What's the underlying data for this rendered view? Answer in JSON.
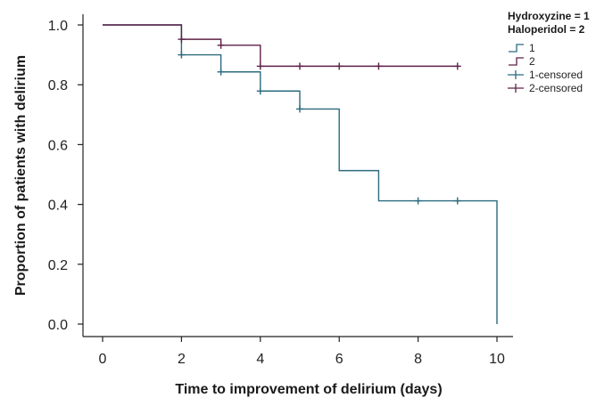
{
  "chart_data": {
    "type": "line",
    "xlabel": "Time to improvement of delirium (days)",
    "ylabel": "Proportion of patients with delirium",
    "xlim": [
      0,
      10
    ],
    "ylim": [
      0.0,
      1.0
    ],
    "x_ticks": [
      0,
      2,
      4,
      6,
      8,
      10
    ],
    "y_ticks": [
      0.0,
      0.2,
      0.4,
      0.6,
      0.8,
      1.0
    ],
    "x_tick_labels": [
      "0",
      "2",
      "4",
      "6",
      "8",
      "10"
    ],
    "y_tick_labels": [
      "0.0",
      "0.2",
      "0.4",
      "0.6",
      "0.8",
      "1.0"
    ],
    "grid": false,
    "legend_placement": "top-right",
    "legend_title_lines": [
      "Hydroxyzine = 1",
      "Haloperidol = 2"
    ],
    "series": [
      {
        "name": "1",
        "style": "step",
        "color": "#2b6a7f",
        "x": [
          0,
          2,
          3,
          4,
          5,
          6,
          7,
          10,
          10
        ],
        "y": [
          1.0,
          0.9,
          0.843,
          0.779,
          0.719,
          0.513,
          0.412,
          0.412,
          0.0
        ]
      },
      {
        "name": "2",
        "style": "step",
        "color": "#5e2148",
        "x": [
          0,
          2,
          3,
          4,
          9
        ],
        "y": [
          1.0,
          0.952,
          0.932,
          0.862,
          0.862
        ]
      },
      {
        "name": "1-censored",
        "style": "censor",
        "color": "#2b6a7f",
        "x": [
          2,
          3,
          4,
          5,
          8,
          9
        ],
        "y": [
          0.9,
          0.843,
          0.779,
          0.719,
          0.412,
          0.412
        ]
      },
      {
        "name": "2-censored",
        "style": "censor",
        "color": "#5e2148",
        "x": [
          2,
          3,
          4,
          5,
          6,
          7,
          9
        ],
        "y": [
          0.952,
          0.932,
          0.862,
          0.862,
          0.862,
          0.862,
          0.862
        ]
      }
    ]
  }
}
